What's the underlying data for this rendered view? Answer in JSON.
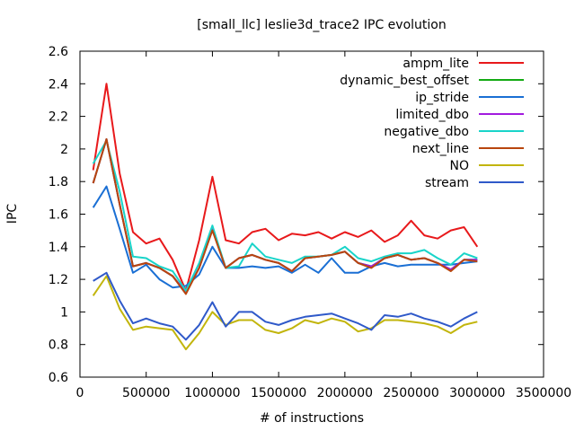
{
  "chart_data": {
    "type": "line",
    "title": "[small_llc] leslie3d_trace2 IPC evolution",
    "xlabel": "# of instructions",
    "ylabel": "IPC",
    "xlim": [
      0,
      3500000
    ],
    "ylim": [
      0.6,
      2.6
    ],
    "x_ticks": [
      0,
      500000,
      1000000,
      1500000,
      2000000,
      2500000,
      3000000,
      3500000
    ],
    "y_ticks": [
      0.6,
      0.8,
      1,
      1.2,
      1.4,
      1.6,
      1.8,
      2,
      2.2,
      2.4,
      2.6
    ],
    "x_tick_labels": [
      "0",
      "500000",
      "1000000",
      "1500000",
      "2000000",
      "2500000",
      "3000000",
      "3500000"
    ],
    "y_tick_labels": [
      "0.6",
      "0.8",
      "1",
      "1.2",
      "1.4",
      "1.6",
      "1.8",
      "2",
      "2.2",
      "2.4",
      "2.6"
    ],
    "grid": false,
    "legend_position": "top-right",
    "x": [
      100000,
      200000,
      300000,
      400000,
      500000,
      600000,
      700000,
      800000,
      900000,
      1000000,
      1100000,
      1200000,
      1300000,
      1400000,
      1500000,
      1600000,
      1700000,
      1800000,
      1900000,
      2000000,
      2100000,
      2200000,
      2300000,
      2400000,
      2500000,
      2600000,
      2700000,
      2800000,
      2900000,
      3000000
    ],
    "series": [
      {
        "name": "ampm_lite",
        "color": "#e8191b",
        "values": [
          1.87,
          2.4,
          1.85,
          1.49,
          1.42,
          1.45,
          1.32,
          1.13,
          1.44,
          1.83,
          1.44,
          1.42,
          1.49,
          1.51,
          1.44,
          1.48,
          1.47,
          1.49,
          1.45,
          1.49,
          1.46,
          1.5,
          1.43,
          1.47,
          1.56,
          1.47,
          1.45,
          1.5,
          1.52,
          1.4
        ]
      },
      {
        "name": "dynamic_best_offset",
        "color": "#13aa13",
        "values": [
          1.79,
          2.06,
          1.66,
          1.28,
          1.3,
          1.27,
          1.22,
          1.12,
          1.27,
          1.51,
          1.27,
          1.33,
          1.35,
          1.32,
          1.3,
          1.25,
          1.33,
          1.34,
          1.35,
          1.37,
          1.3,
          1.28,
          1.33,
          1.35,
          1.32,
          1.33,
          1.3,
          1.26,
          1.32,
          1.32
        ]
      },
      {
        "name": "ip_stride",
        "color": "#1a6fd4",
        "values": [
          1.64,
          1.77,
          1.51,
          1.24,
          1.29,
          1.2,
          1.15,
          1.16,
          1.23,
          1.4,
          1.27,
          1.27,
          1.28,
          1.27,
          1.28,
          1.24,
          1.29,
          1.24,
          1.33,
          1.24,
          1.24,
          1.28,
          1.3,
          1.28,
          1.29,
          1.29,
          1.29,
          1.29,
          1.3,
          1.31
        ]
      },
      {
        "name": "limited_dbo",
        "color": "#a21ade",
        "values": [
          1.79,
          2.06,
          1.66,
          1.28,
          1.3,
          1.27,
          1.22,
          1.12,
          1.27,
          1.51,
          1.27,
          1.33,
          1.35,
          1.32,
          1.3,
          1.25,
          1.33,
          1.34,
          1.35,
          1.37,
          1.3,
          1.28,
          1.33,
          1.35,
          1.32,
          1.33,
          1.3,
          1.26,
          1.32,
          1.32
        ]
      },
      {
        "name": "negative_dbo",
        "color": "#19d4c9",
        "values": [
          1.91,
          2.05,
          1.74,
          1.34,
          1.33,
          1.28,
          1.25,
          1.13,
          1.3,
          1.53,
          1.27,
          1.28,
          1.42,
          1.34,
          1.32,
          1.3,
          1.34,
          1.34,
          1.35,
          1.4,
          1.33,
          1.31,
          1.34,
          1.36,
          1.36,
          1.38,
          1.33,
          1.29,
          1.36,
          1.33
        ]
      },
      {
        "name": "next_line",
        "color": "#b8460e",
        "values": [
          1.79,
          2.06,
          1.66,
          1.28,
          1.3,
          1.27,
          1.22,
          1.11,
          1.27,
          1.5,
          1.27,
          1.33,
          1.35,
          1.32,
          1.3,
          1.25,
          1.33,
          1.34,
          1.35,
          1.37,
          1.3,
          1.27,
          1.33,
          1.35,
          1.32,
          1.33,
          1.3,
          1.25,
          1.32,
          1.31
        ]
      },
      {
        "name": "NO",
        "color": "#c2b50c",
        "values": [
          1.1,
          1.22,
          1.02,
          0.89,
          0.91,
          0.9,
          0.89,
          0.77,
          0.87,
          1.0,
          0.92,
          0.95,
          0.95,
          0.89,
          0.87,
          0.9,
          0.95,
          0.93,
          0.96,
          0.94,
          0.88,
          0.9,
          0.95,
          0.95,
          0.94,
          0.93,
          0.91,
          0.87,
          0.92,
          0.94
        ]
      },
      {
        "name": "stream",
        "color": "#2f59c9",
        "values": [
          1.19,
          1.24,
          1.07,
          0.93,
          0.96,
          0.93,
          0.91,
          0.83,
          0.92,
          1.06,
          0.91,
          1.0,
          1.0,
          0.94,
          0.92,
          0.95,
          0.97,
          0.98,
          0.99,
          0.96,
          0.93,
          0.89,
          0.98,
          0.97,
          0.99,
          0.96,
          0.94,
          0.91,
          0.96,
          1.0
        ]
      }
    ]
  }
}
